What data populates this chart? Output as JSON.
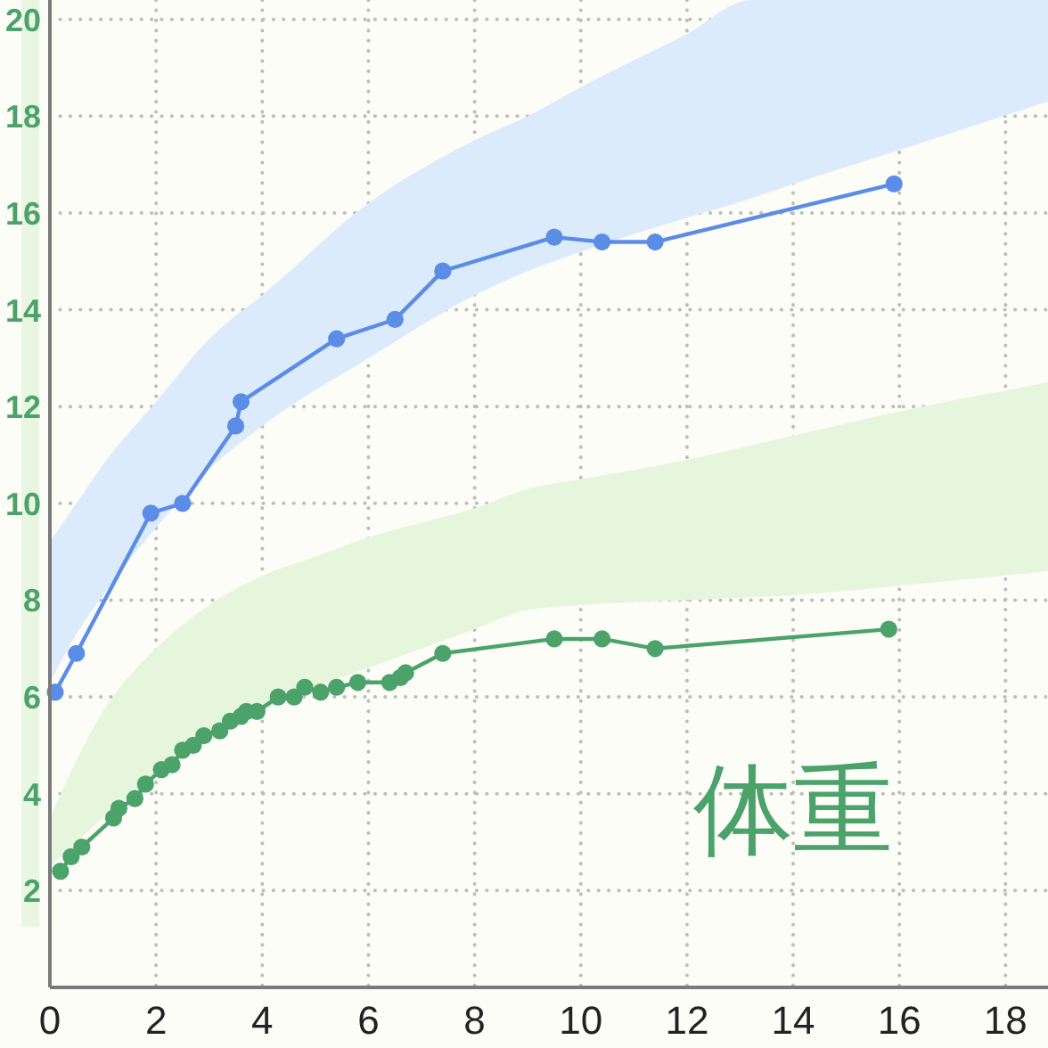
{
  "chart_data": {
    "type": "line",
    "xlim": [
      0,
      18.8
    ],
    "xticks": [
      0,
      2,
      4,
      6,
      8,
      10,
      12,
      14,
      16,
      18
    ],
    "ylim": [
      0,
      20.4
    ],
    "yticks": [
      2,
      4,
      6,
      8,
      10,
      12,
      14,
      16,
      18,
      20
    ],
    "grid": true,
    "marker": "circle",
    "series": [
      {
        "type": "area",
        "color": "#dcebfb",
        "x": [
          0,
          0.5,
          1,
          2,
          3,
          4,
          6,
          8,
          9,
          10,
          12,
          13.2,
          14,
          16,
          18.8
        ],
        "values": [
          null,
          null,
          null,
          null,
          null,
          null,
          null,
          null,
          null,
          null,
          null,
          null,
          null,
          null,
          null
        ],
        "lower": [
          6.3,
          7.3,
          8.1,
          9.5,
          10.7,
          11.6,
          13.0,
          14.3,
          14.8,
          15.2,
          15.9,
          16.3,
          16.6,
          17.3,
          18.3
        ],
        "upper": [
          9.2,
          10.0,
          10.8,
          12.1,
          13.4,
          14.3,
          16.2,
          17.5,
          18.0,
          18.6,
          19.7,
          20.4,
          20.4,
          20.4,
          20.4
        ]
      },
      {
        "type": "area",
        "color": "#e6f6dc",
        "x": [
          0,
          0.5,
          1,
          2,
          3,
          4,
          5,
          6,
          7,
          8,
          9,
          10,
          12,
          14,
          16,
          18.8
        ],
        "values": [
          null,
          null,
          null,
          null,
          null,
          null,
          null,
          null,
          null,
          null,
          null,
          null,
          null,
          null,
          null,
          null
        ],
        "lower": [
          2.5,
          3.0,
          3.5,
          4.4,
          5.1,
          5.7,
          6.2,
          6.6,
          7.0,
          7.4,
          7.8,
          7.9,
          8.0,
          8.1,
          8.3,
          8.6
        ],
        "upper": [
          3.5,
          4.7,
          5.7,
          7.0,
          7.9,
          8.5,
          8.9,
          9.3,
          9.6,
          9.9,
          10.3,
          10.5,
          10.9,
          11.4,
          11.9,
          12.5
        ]
      },
      {
        "color": "#5b8de6",
        "x": [
          0.1,
          0.5,
          1.9,
          2.5,
          3.5,
          3.6,
          5.4,
          6.5,
          7.4,
          9.5,
          10.4,
          11.4,
          15.9
        ],
        "values": [
          6.1,
          6.9,
          9.8,
          10.0,
          11.6,
          12.1,
          13.4,
          13.8,
          14.8,
          15.5,
          15.4,
          15.4,
          16.6
        ]
      },
      {
        "name": "体重",
        "color": "#4ba26a",
        "x": [
          0.2,
          0.4,
          0.6,
          1.2,
          1.3,
          1.6,
          1.8,
          2.1,
          2.3,
          2.5,
          2.7,
          2.9,
          3.2,
          3.4,
          3.6,
          3.7,
          3.9,
          4.3,
          4.6,
          4.8,
          5.1,
          5.4,
          5.8,
          6.4,
          6.6,
          6.7,
          7.4,
          9.5,
          10.4,
          11.4,
          15.8
        ],
        "values": [
          2.4,
          2.7,
          2.9,
          3.5,
          3.7,
          3.9,
          4.2,
          4.5,
          4.6,
          4.9,
          5.0,
          5.2,
          5.3,
          5.5,
          5.6,
          5.7,
          5.7,
          6.0,
          6.0,
          6.2,
          6.1,
          6.2,
          6.3,
          6.3,
          6.4,
          6.5,
          6.9,
          7.2,
          7.2,
          7.0,
          7.4
        ]
      }
    ]
  }
}
